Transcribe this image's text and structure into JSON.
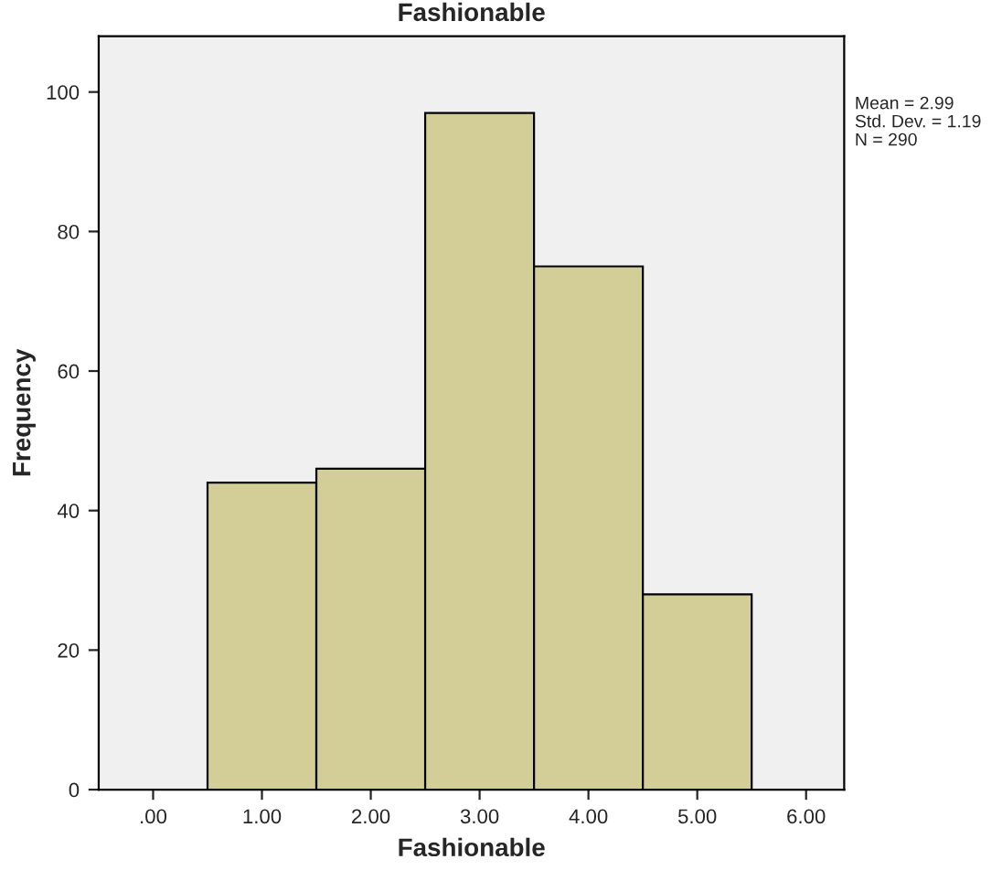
{
  "chart_data": {
    "type": "histogram",
    "title": "Fashionable",
    "xlabel": "Fashionable",
    "ylabel": "Frequency",
    "bins": [
      0.5,
      1.5,
      2.5,
      3.5,
      4.5,
      5.5
    ],
    "values": [
      44,
      46,
      97,
      75,
      28
    ],
    "color": "#d3ce97",
    "xlim": [
      -0.5,
      6.35
    ],
    "xticks": [
      {
        "value": 0,
        "label": ".00"
      },
      {
        "value": 1,
        "label": "1.00"
      },
      {
        "value": 2,
        "label": "2.00"
      },
      {
        "value": 3,
        "label": "3.00"
      },
      {
        "value": 4,
        "label": "4.00"
      },
      {
        "value": 5,
        "label": "5.00"
      },
      {
        "value": 6,
        "label": "6.00"
      }
    ],
    "ylim": [
      0,
      108
    ],
    "yticks": [
      0,
      20,
      40,
      60,
      80,
      100
    ],
    "grid": false,
    "legend": false,
    "annotations": [
      "Mean = 2.99",
      "Std. Dev. = 1.19",
      "N = 290"
    ]
  }
}
